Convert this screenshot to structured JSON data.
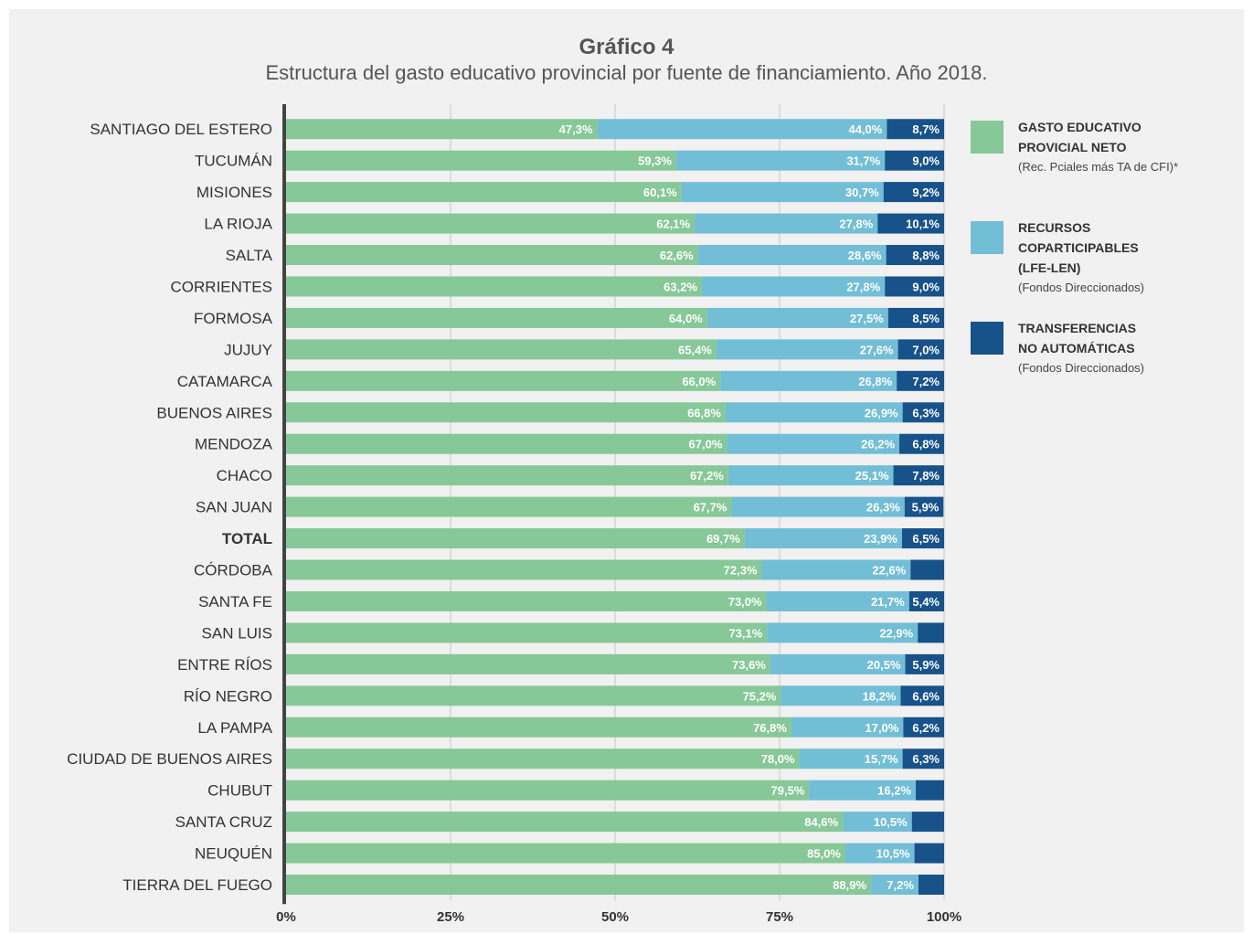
{
  "title": "Gráfico 4",
  "subtitle": "Estructura del gasto educativo provincial por fuente de financiamiento. Año 2018.",
  "colors": {
    "neto": "#86c897",
    "coparticipables": "#72bed6",
    "transferencias": "#17528a",
    "axis": "#444444",
    "grid": "#c8c8c8"
  },
  "legend": [
    {
      "key": "neto",
      "name": "GASTO EDUCATIVO\nPROVICIAL NETO",
      "note": "(Rec. Pciales más TA de CFI)*"
    },
    {
      "key": "coparticipables",
      "name": "RECURSOS\nCOPARTICIPABLES\n(LFE-LEN)",
      "note": "(Fondos Direccionados)"
    },
    {
      "key": "transferencias",
      "name": "TRANSFERENCIAS\nNO AUTOMÁTICAS",
      "note": "(Fondos Direccionados)"
    }
  ],
  "chart_data": {
    "type": "bar",
    "orientation": "horizontal",
    "stacked": true,
    "percent_stacked": true,
    "xlim": [
      0,
      100
    ],
    "x_ticks": [
      "0%",
      "25%",
      "50%",
      "75%",
      "100%"
    ],
    "grid": true,
    "legend_position": "right",
    "categories": [
      "SANTIAGO DEL ESTERO",
      "TUCUMÁN",
      "MISIONES",
      "LA RIOJA",
      "SALTA",
      "CORRIENTES",
      "FORMOSA",
      "JUJUY",
      "CATAMARCA",
      "BUENOS AIRES",
      "MENDOZA",
      "CHACO",
      "SAN JUAN",
      "TOTAL",
      "CÓRDOBA",
      "SANTA FE",
      "SAN LUIS",
      "ENTRE RÍOS",
      "RÍO NEGRO",
      "LA PAMPA",
      "CIUDAD DE BUENOS AIRES",
      "CHUBUT",
      "SANTA CRUZ",
      "NEUQUÉN",
      "TIERRA DEL FUEGO"
    ],
    "bold_categories": [
      "TOTAL"
    ],
    "series": [
      {
        "key": "neto",
        "values": [
          47.3,
          59.3,
          60.1,
          62.1,
          62.6,
          63.2,
          64.0,
          65.4,
          66.0,
          66.8,
          67.0,
          67.2,
          67.7,
          69.7,
          72.3,
          73.0,
          73.1,
          73.6,
          75.2,
          76.8,
          78.0,
          79.5,
          84.6,
          85.0,
          88.9
        ],
        "labels": [
          "47,3%",
          "59,3%",
          "60,1%",
          "62,1%",
          "62,6%",
          "63,2%",
          "64,0%",
          "65,4%",
          "66,0%",
          "66,8%",
          "67,0%",
          "67,2%",
          "67,7%",
          "69,7%",
          "72,3%",
          "73,0%",
          "73,1%",
          "73,6%",
          "75,2%",
          "76,8%",
          "78,0%",
          "79,5%",
          "84,6%",
          "85,0%",
          "88,9%"
        ]
      },
      {
        "key": "coparticipables",
        "values": [
          44.0,
          31.7,
          30.7,
          27.8,
          28.6,
          27.8,
          27.5,
          27.6,
          26.8,
          26.9,
          26.2,
          25.1,
          26.3,
          23.9,
          22.6,
          21.7,
          22.9,
          20.5,
          18.2,
          17.0,
          15.7,
          16.2,
          10.5,
          10.5,
          7.2
        ],
        "labels": [
          "44,0%",
          "31,7%",
          "30,7%",
          "27,8%",
          "28,6%",
          "27,8%",
          "27,5%",
          "27,6%",
          "26,8%",
          "26,9%",
          "26,2%",
          "25,1%",
          "26,3%",
          "23,9%",
          "22,6%",
          "21,7%",
          "22,9%",
          "20,5%",
          "18,2%",
          "17,0%",
          "15,7%",
          "16,2%",
          "10,5%",
          "10,5%",
          "7,2%"
        ]
      },
      {
        "key": "transferencias",
        "values": [
          8.7,
          9.0,
          9.2,
          10.1,
          8.8,
          9.0,
          8.5,
          7.0,
          7.2,
          6.3,
          6.8,
          7.8,
          5.9,
          6.5,
          5.1,
          5.4,
          4.0,
          5.9,
          6.6,
          6.2,
          6.3,
          4.3,
          4.9,
          4.5,
          3.9
        ],
        "labels": [
          "8,7%",
          "9,0%",
          "9,2%",
          "10,1%",
          "8,8%",
          "9,0%",
          "8,5%",
          "7,0%",
          "7,2%",
          "6,3%",
          "6,8%",
          "7,8%",
          "5,9%",
          "6,5%",
          "",
          "5,4%",
          "",
          "5,9%",
          "6,6%",
          "6,2%",
          "6,3%",
          "",
          "",
          "",
          ""
        ]
      }
    ]
  }
}
